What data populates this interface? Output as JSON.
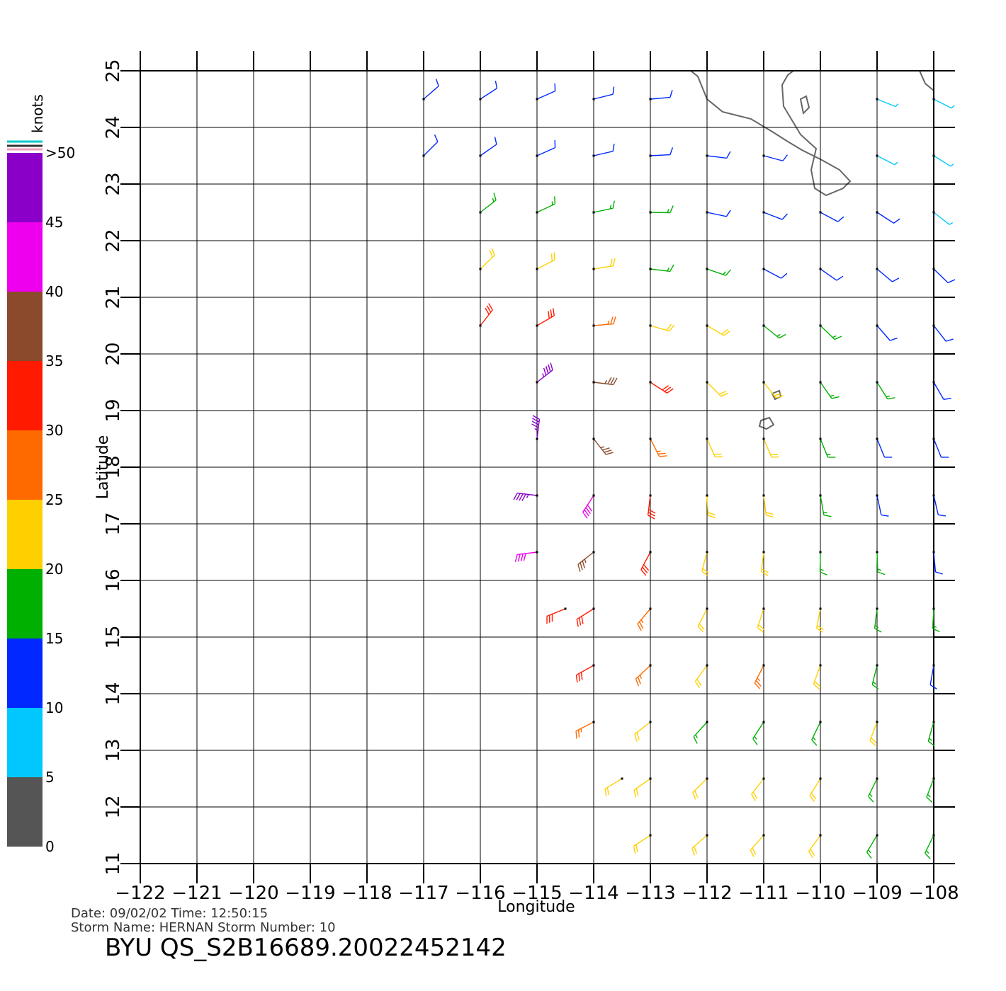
{
  "chart_data": {
    "type": "wind_barbs",
    "x_label": "Longitude",
    "y_label": "Latitude",
    "xlim": [
      -122,
      -108
    ],
    "ylim": [
      11,
      25
    ],
    "xticks": [
      {
        "value": -122,
        "label": "−122"
      },
      {
        "value": -121,
        "label": "−121"
      },
      {
        "value": -120,
        "label": "−120"
      },
      {
        "value": -119,
        "label": "−119"
      },
      {
        "value": -118,
        "label": "−118"
      },
      {
        "value": -117,
        "label": "−117"
      },
      {
        "value": -116,
        "label": "−116"
      },
      {
        "value": -115,
        "label": "−115"
      },
      {
        "value": -114,
        "label": "−114"
      },
      {
        "value": -113,
        "label": "−113"
      },
      {
        "value": -112,
        "label": "−112"
      },
      {
        "value": -111,
        "label": "−111"
      },
      {
        "value": -110,
        "label": "−110"
      },
      {
        "value": -109,
        "label": "−109"
      },
      {
        "value": -108,
        "label": "−108"
      }
    ],
    "yticks": [
      11,
      12,
      13,
      14,
      15,
      16,
      17,
      18,
      19,
      20,
      21,
      22,
      23,
      24,
      25
    ],
    "grid": true,
    "colorbar": {
      "label": "knots",
      "lim": [
        0,
        50
      ],
      "ticks": [
        0,
        5,
        10,
        15,
        20,
        25,
        30,
        35,
        40,
        45,
        {
          "value": 50,
          "label": ">50"
        }
      ],
      "colors": [
        "#555555",
        "#00c8ff",
        "#0028ff",
        "#00b000",
        "#ffd000",
        "#ff6a00",
        "#ff1a00",
        "#8b4a2b",
        "#ee00ee",
        "#8a00c8"
      ]
    },
    "barbs": {
      "lon": [
        -117,
        -116,
        -115,
        -114,
        -113,
        -109,
        -108,
        -117,
        -116,
        -115,
        -114,
        -113,
        -112,
        -111,
        -109,
        -108,
        -116,
        -115,
        -114,
        -113,
        -112,
        -111,
        -110,
        -109,
        -108,
        -116,
        -115,
        -114,
        -113,
        -112,
        -111,
        -110,
        -109,
        -108,
        -116,
        -115,
        -114,
        -113,
        -112,
        -111,
        -110,
        -109,
        -108,
        -115,
        -114,
        -113,
        -112,
        -111,
        -110,
        -109,
        -108,
        -115,
        -114,
        -113,
        -112,
        -111,
        -110,
        -109,
        -108,
        -115,
        -114,
        -113,
        -112,
        -111,
        -110,
        -109,
        -108,
        -115,
        -114,
        -113,
        -112,
        -111,
        -110,
        -109,
        -108,
        -114.5,
        -114,
        -113,
        -112,
        -111,
        -110,
        -109,
        -108,
        -114,
        -113,
        -112,
        -111,
        -110,
        -109,
        -108,
        -114,
        -113,
        -112,
        -111,
        -110,
        -109,
        -108,
        -113.5,
        -113,
        -112,
        -111,
        -110,
        -109,
        -108,
        -113,
        -112,
        -111,
        -110,
        -109,
        -108
      ],
      "lat": [
        24.5,
        24.5,
        24.5,
        24.5,
        24.5,
        24.5,
        24.5,
        23.5,
        23.5,
        23.5,
        23.5,
        23.5,
        23.5,
        23.5,
        23.5,
        23.5,
        22.5,
        22.5,
        22.5,
        22.5,
        22.5,
        22.5,
        22.5,
        22.5,
        22.5,
        21.5,
        21.5,
        21.5,
        21.5,
        21.5,
        21.5,
        21.5,
        21.5,
        21.5,
        20.5,
        20.5,
        20.5,
        20.5,
        20.5,
        20.5,
        20.5,
        20.5,
        20.5,
        19.5,
        19.5,
        19.5,
        19.5,
        19.5,
        19.5,
        19.5,
        19.5,
        18.5,
        18.5,
        18.5,
        18.5,
        18.5,
        18.5,
        18.5,
        18.5,
        17.5,
        17.5,
        17.5,
        17.5,
        17.5,
        17.5,
        17.5,
        17.5,
        16.5,
        16.5,
        16.5,
        16.5,
        16.5,
        16.5,
        16.5,
        16.5,
        15.5,
        15.5,
        15.5,
        15.5,
        15.5,
        15.5,
        15.5,
        15.5,
        14.5,
        14.5,
        14.5,
        14.5,
        14.5,
        14.5,
        14.5,
        13.5,
        13.5,
        13.5,
        13.5,
        13.5,
        13.5,
        13.5,
        12.5,
        12.5,
        12.5,
        12.5,
        12.5,
        12.5,
        12.5,
        11.5,
        11.5,
        11.5,
        11.5,
        11.5,
        11.5
      ],
      "speed": [
        12,
        12,
        13,
        13,
        11,
        8,
        6,
        14,
        14,
        14,
        13,
        12,
        12,
        12,
        9,
        8,
        18,
        18,
        17,
        16,
        14,
        13,
        12,
        11,
        9,
        24,
        22,
        20,
        18,
        16,
        14,
        13,
        12,
        11,
        32,
        32,
        28,
        24,
        20,
        18,
        16,
        14,
        12,
        45,
        38,
        30,
        24,
        20,
        17,
        15,
        13,
        48,
        38,
        28,
        24,
        20,
        17,
        14,
        12,
        46,
        40,
        32,
        24,
        20,
        17,
        14,
        12,
        44,
        38,
        30,
        24,
        21,
        18,
        15,
        13,
        32,
        32,
        28,
        24,
        22,
        20,
        18,
        16,
        30,
        26,
        24,
        27,
        22,
        18,
        14,
        26,
        24,
        18,
        18,
        18,
        20,
        15,
        24,
        24,
        22,
        20,
        22,
        18,
        16,
        20,
        22,
        22,
        20,
        17,
        17
      ],
      "direction": [
        229,
        237,
        246,
        256,
        265,
        292,
        297,
        225,
        235,
        246,
        257,
        267,
        277,
        285,
        297,
        302,
        232,
        245,
        258,
        271,
        282,
        291,
        298,
        303,
        308,
        226,
        243,
        261,
        277,
        289,
        298,
        305,
        310,
        314,
        218,
        240,
        265,
        286,
        300,
        309,
        314,
        319,
        322,
        232,
        277,
        303,
        315,
        322,
        325,
        328,
        330,
        187,
        322,
        333,
        336,
        337,
        338,
        338,
        338,
        97,
        33,
        7,
        357,
        353,
        350,
        348,
        347,
        83,
        52,
        28,
        15,
        7,
        1,
        358,
        355,
        68,
        58,
        40,
        27,
        18,
        11,
        7,
        3,
        61,
        47,
        36,
        27,
        20,
        14,
        10,
        63,
        52,
        42,
        33,
        26,
        21,
        16,
        59,
        55,
        46,
        38,
        32,
        26,
        21,
        57,
        49,
        42,
        36,
        31,
        26
      ]
    }
  },
  "footer": {
    "line1": "Date:  09/02/02    Time:  12:50:15",
    "line2": "Storm  Name:  HERNAN    Storm  Number:  10",
    "product": "BYU  QS_S2B16689.20022452142"
  }
}
